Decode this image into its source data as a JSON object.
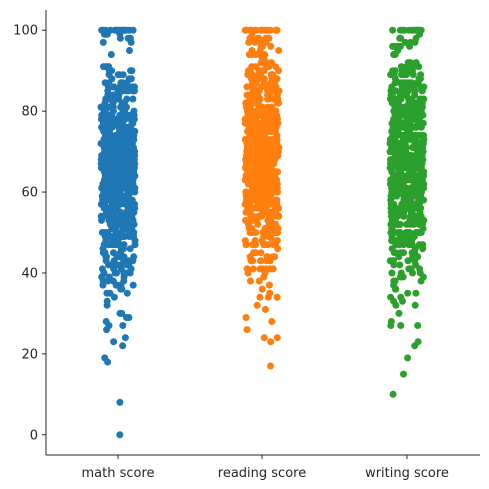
{
  "chart_data": {
    "type": "scatter",
    "title": "",
    "xlabel": "",
    "ylabel": "",
    "categories": [
      "math score",
      "reading score",
      "writing score"
    ],
    "ylim": [
      -5,
      105
    ],
    "yticks": [
      0,
      20,
      40,
      60,
      80,
      100
    ],
    "legend": "none",
    "grid": false,
    "series": [
      {
        "category": "math score",
        "color": "#1f77b4",
        "band": {
          "min": 35,
          "max": 100,
          "mean": 66,
          "sd": 14
        },
        "outliers": [
          0,
          8,
          18,
          19,
          22,
          23,
          24,
          26,
          27,
          27,
          28,
          29,
          29,
          30,
          30,
          32,
          33,
          34,
          35
        ]
      },
      {
        "category": "reading score",
        "color": "#ff7f0e",
        "band": {
          "min": 37,
          "max": 100,
          "mean": 69,
          "sd": 13.5
        },
        "outliers": [
          17,
          23,
          24,
          24,
          26,
          28,
          29,
          31,
          32,
          34,
          34,
          34,
          35,
          36
        ]
      },
      {
        "category": "writing score",
        "color": "#2ca02c",
        "band": {
          "min": 35,
          "max": 100,
          "mean": 68,
          "sd": 14
        },
        "outliers": [
          10,
          15,
          19,
          22,
          23,
          27,
          27,
          27,
          28,
          30,
          32,
          32,
          33,
          33,
          34,
          34,
          35
        ]
      }
    ]
  }
}
